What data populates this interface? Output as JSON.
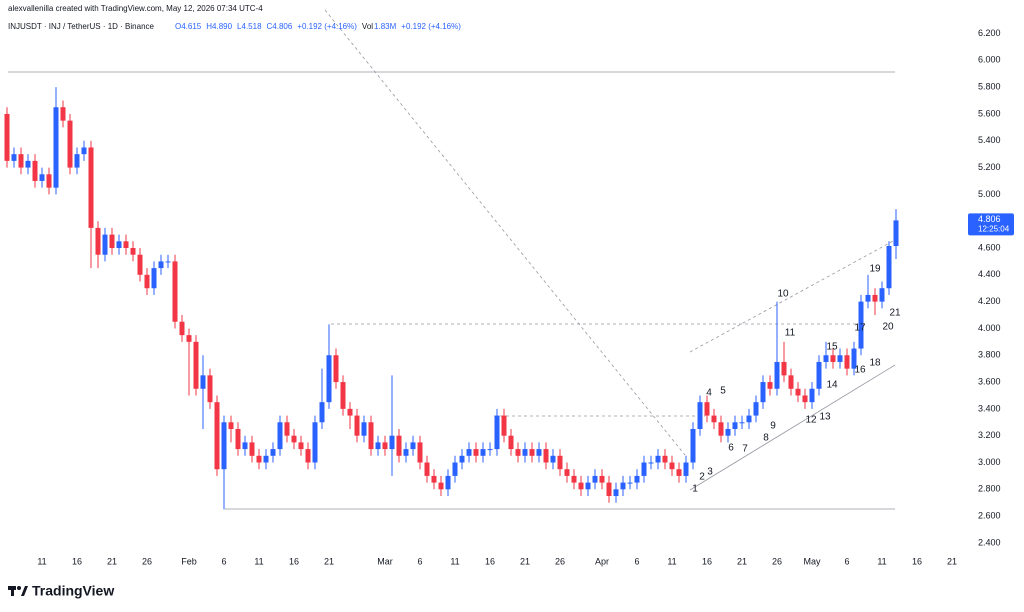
{
  "header": "alexvallenilla created with TradingView.com, May 12, 2026 07:34 UTC-4",
  "brand": "TradingView",
  "chart_data": {
    "type": "candlestick",
    "symbol": "INJUSDT · INJ / TetherUS · 1D · Binance",
    "ohlc_labels": [
      "O4.615",
      "H4.890",
      "L4.518",
      "C4.806",
      "+0.192 (+4.16%)"
    ],
    "volume_labels": [
      "Vol",
      "1.83M",
      "+0.192 (+4.16%)"
    ],
    "last_price_label": "4.806",
    "countdown": "12:25:04",
    "up_color": "#2962ff",
    "down_color": "#f23645",
    "grid": false,
    "opens": [
      5.6,
      5.25,
      5.3,
      5.2,
      5.25,
      5.1,
      5.15,
      5.05,
      5.65,
      5.55,
      5.2,
      5.3,
      5.35,
      4.75,
      4.55,
      4.7,
      4.6,
      4.65,
      4.6,
      4.55,
      4.4,
      4.3,
      4.45,
      4.5,
      4.5,
      4.05,
      3.95,
      3.9,
      3.55,
      3.65,
      3.45,
      2.95,
      3.3,
      3.25,
      3.1,
      3.15,
      3.05,
      3.0,
      3.05,
      3.1,
      3.3,
      3.2,
      3.15,
      3.1,
      3.0,
      3.3,
      3.45,
      3.8,
      3.6,
      3.4,
      3.35,
      3.2,
      3.3,
      3.1,
      3.15,
      3.1,
      3.2,
      3.05,
      3.1,
      3.15,
      3.0,
      2.9,
      2.85,
      2.8,
      2.9,
      3.0,
      3.05,
      3.1,
      3.05,
      3.1,
      3.1,
      3.35,
      3.2,
      3.1,
      3.05,
      3.1,
      3.05,
      3.1,
      3.0,
      3.05,
      2.95,
      2.9,
      2.85,
      2.8,
      2.85,
      2.9,
      2.85,
      2.75,
      2.8,
      2.85,
      2.85,
      2.9,
      3.0,
      3.0,
      3.05,
      3.0,
      2.95,
      2.9,
      3.0,
      3.25,
      3.45,
      3.35,
      3.3,
      3.2,
      3.25,
      3.3,
      3.3,
      3.35,
      3.45,
      3.6,
      3.55,
      3.75,
      3.65,
      3.55,
      3.5,
      3.45,
      3.55,
      3.75,
      3.8,
      3.75,
      3.8,
      3.7,
      3.85,
      4.2,
      4.25,
      4.2,
      4.3,
      4.615
    ],
    "closes": [
      5.25,
      5.3,
      5.2,
      5.25,
      5.1,
      5.15,
      5.05,
      5.65,
      5.55,
      5.2,
      5.3,
      5.35,
      4.75,
      4.55,
      4.7,
      4.6,
      4.65,
      4.6,
      4.55,
      4.4,
      4.3,
      4.45,
      4.5,
      4.5,
      4.05,
      3.95,
      3.9,
      3.55,
      3.65,
      3.45,
      2.95,
      3.3,
      3.25,
      3.1,
      3.15,
      3.05,
      3.0,
      3.05,
      3.1,
      3.3,
      3.2,
      3.15,
      3.1,
      3.0,
      3.3,
      3.45,
      3.8,
      3.6,
      3.4,
      3.35,
      3.2,
      3.3,
      3.1,
      3.15,
      3.1,
      3.2,
      3.05,
      3.1,
      3.15,
      3.0,
      2.9,
      2.85,
      2.8,
      2.9,
      3.0,
      3.05,
      3.1,
      3.05,
      3.1,
      3.1,
      3.35,
      3.2,
      3.1,
      3.05,
      3.1,
      3.05,
      3.1,
      3.0,
      3.05,
      2.95,
      2.9,
      2.85,
      2.8,
      2.85,
      2.9,
      2.85,
      2.75,
      2.8,
      2.85,
      2.85,
      2.9,
      3.0,
      3.0,
      3.05,
      3.0,
      2.95,
      2.9,
      3.0,
      3.25,
      3.45,
      3.35,
      3.3,
      3.2,
      3.25,
      3.3,
      3.3,
      3.35,
      3.45,
      3.6,
      3.55,
      3.75,
      3.65,
      3.55,
      3.5,
      3.45,
      3.55,
      3.75,
      3.8,
      3.75,
      3.8,
      3.7,
      3.85,
      4.2,
      4.25,
      4.2,
      4.3,
      4.615,
      4.806
    ],
    "highs": [
      5.65,
      5.35,
      5.35,
      5.3,
      5.3,
      5.2,
      5.2,
      5.8,
      5.7,
      5.6,
      5.35,
      5.4,
      5.4,
      4.8,
      4.75,
      4.75,
      4.7,
      4.7,
      4.65,
      4.6,
      4.45,
      4.5,
      4.55,
      4.55,
      4.55,
      4.1,
      4.0,
      3.95,
      3.8,
      3.7,
      3.5,
      3.35,
      3.35,
      3.3,
      3.2,
      3.2,
      3.1,
      3.1,
      3.15,
      3.35,
      3.35,
      3.25,
      3.2,
      3.15,
      3.35,
      3.7,
      4.03,
      3.85,
      3.65,
      3.45,
      3.4,
      3.35,
      3.35,
      3.2,
      3.2,
      3.65,
      3.25,
      3.15,
      3.2,
      3.2,
      3.05,
      2.95,
      2.9,
      2.95,
      3.05,
      3.1,
      3.15,
      3.15,
      3.15,
      3.15,
      3.4,
      3.4,
      3.25,
      3.15,
      3.15,
      3.15,
      3.15,
      3.15,
      3.1,
      3.1,
      3.0,
      2.95,
      2.9,
      2.9,
      2.95,
      2.95,
      2.9,
      2.85,
      2.9,
      2.9,
      2.95,
      3.05,
      3.05,
      3.1,
      3.1,
      3.05,
      3.0,
      3.05,
      3.3,
      3.5,
      3.5,
      3.4,
      3.35,
      3.3,
      3.35,
      3.35,
      3.4,
      3.5,
      3.65,
      3.65,
      4.2,
      3.9,
      3.7,
      3.6,
      3.55,
      3.6,
      3.8,
      3.9,
      3.85,
      3.85,
      3.85,
      3.9,
      4.25,
      4.4,
      4.3,
      4.35,
      4.65,
      4.89
    ],
    "lows": [
      5.2,
      5.2,
      5.15,
      5.15,
      5.05,
      5.05,
      5.0,
      5.0,
      5.5,
      5.15,
      5.15,
      5.25,
      4.45,
      4.45,
      4.5,
      4.55,
      4.55,
      4.55,
      4.5,
      4.35,
      4.25,
      4.25,
      4.4,
      4.45,
      4.0,
      3.9,
      3.5,
      3.5,
      3.25,
      3.4,
      2.9,
      2.65,
      3.15,
      3.05,
      3.05,
      3.0,
      2.95,
      2.95,
      3.0,
      3.05,
      3.15,
      3.1,
      3.05,
      2.95,
      2.95,
      3.25,
      3.4,
      3.55,
      3.35,
      3.25,
      3.15,
      3.15,
      3.05,
      3.05,
      3.05,
      2.9,
      3.0,
      3.0,
      3.05,
      2.95,
      2.85,
      2.8,
      2.75,
      2.75,
      2.85,
      2.95,
      3.0,
      3.0,
      3.0,
      3.05,
      3.05,
      3.15,
      3.05,
      3.0,
      3.0,
      3.0,
      3.0,
      2.95,
      2.95,
      2.9,
      2.85,
      2.8,
      2.75,
      2.75,
      2.8,
      2.8,
      2.7,
      2.7,
      2.75,
      2.8,
      2.8,
      2.85,
      2.95,
      2.95,
      2.95,
      2.9,
      2.85,
      2.85,
      2.95,
      3.2,
      3.3,
      3.25,
      3.15,
      3.15,
      3.2,
      3.25,
      3.25,
      3.3,
      3.4,
      3.5,
      3.5,
      3.6,
      3.5,
      3.45,
      3.4,
      3.4,
      3.5,
      3.7,
      3.7,
      3.7,
      3.65,
      3.65,
      3.8,
      4.15,
      4.1,
      4.15,
      4.25,
      4.518
    ],
    "xlim": [
      -1,
      137
    ],
    "xticks": [
      {
        "value": 5,
        "label": "11"
      },
      {
        "value": 10,
        "label": "16"
      },
      {
        "value": 15,
        "label": "21"
      },
      {
        "value": 20,
        "label": "26"
      },
      {
        "value": 26,
        "label": "Feb"
      },
      {
        "value": 31,
        "label": "6"
      },
      {
        "value": 36,
        "label": "11"
      },
      {
        "value": 41,
        "label": "16"
      },
      {
        "value": 46,
        "label": "21"
      },
      {
        "value": 54,
        "label": "Mar"
      },
      {
        "value": 59,
        "label": "6"
      },
      {
        "value": 64,
        "label": "11"
      },
      {
        "value": 69,
        "label": "16"
      },
      {
        "value": 74,
        "label": "21"
      },
      {
        "value": 79,
        "label": "26"
      },
      {
        "value": 85,
        "label": "Apr"
      },
      {
        "value": 90,
        "label": "6"
      },
      {
        "value": 95,
        "label": "11"
      },
      {
        "value": 100,
        "label": "16"
      },
      {
        "value": 105,
        "label": "21"
      },
      {
        "value": 110,
        "label": "26"
      },
      {
        "value": 115,
        "label": "May"
      },
      {
        "value": 120,
        "label": "6"
      },
      {
        "value": 125,
        "label": "11"
      },
      {
        "value": 130,
        "label": "16"
      },
      {
        "value": 135,
        "label": "21"
      }
    ],
    "ylim": [
      2.31,
      6.45
    ],
    "yticks": [
      {
        "value": 2.4,
        "label": "2.400"
      },
      {
        "value": 2.6,
        "label": "2.600"
      },
      {
        "value": 2.8,
        "label": "2.800"
      },
      {
        "value": 3.0,
        "label": "3.000"
      },
      {
        "value": 3.2,
        "label": "3.200"
      },
      {
        "value": 3.4,
        "label": "3.400"
      },
      {
        "value": 3.6,
        "label": "3.600"
      },
      {
        "value": 3.8,
        "label": "3.800"
      },
      {
        "value": 4.0,
        "label": "4.000"
      },
      {
        "value": 4.2,
        "label": "4.200"
      },
      {
        "value": 4.4,
        "label": "4.400"
      },
      {
        "value": 4.6,
        "label": "4.600"
      },
      {
        "value": 4.8,
        "label": "4.800"
      },
      {
        "value": 5.0,
        "label": "5.000"
      },
      {
        "value": 5.2,
        "label": "5.200"
      },
      {
        "value": 5.4,
        "label": "5.400"
      },
      {
        "value": 5.6,
        "label": "5.600"
      },
      {
        "value": 5.8,
        "label": "5.800"
      },
      {
        "value": 6.0,
        "label": "6.000"
      },
      {
        "value": 6.2,
        "label": "6.200"
      }
    ],
    "annotations": [
      "1",
      "2",
      "3",
      "4",
      "5",
      "6",
      "7",
      "8",
      "9",
      "10",
      "11",
      "12",
      "13",
      "14",
      "15",
      "16",
      "17",
      "18",
      "19",
      "20",
      "21"
    ]
  }
}
